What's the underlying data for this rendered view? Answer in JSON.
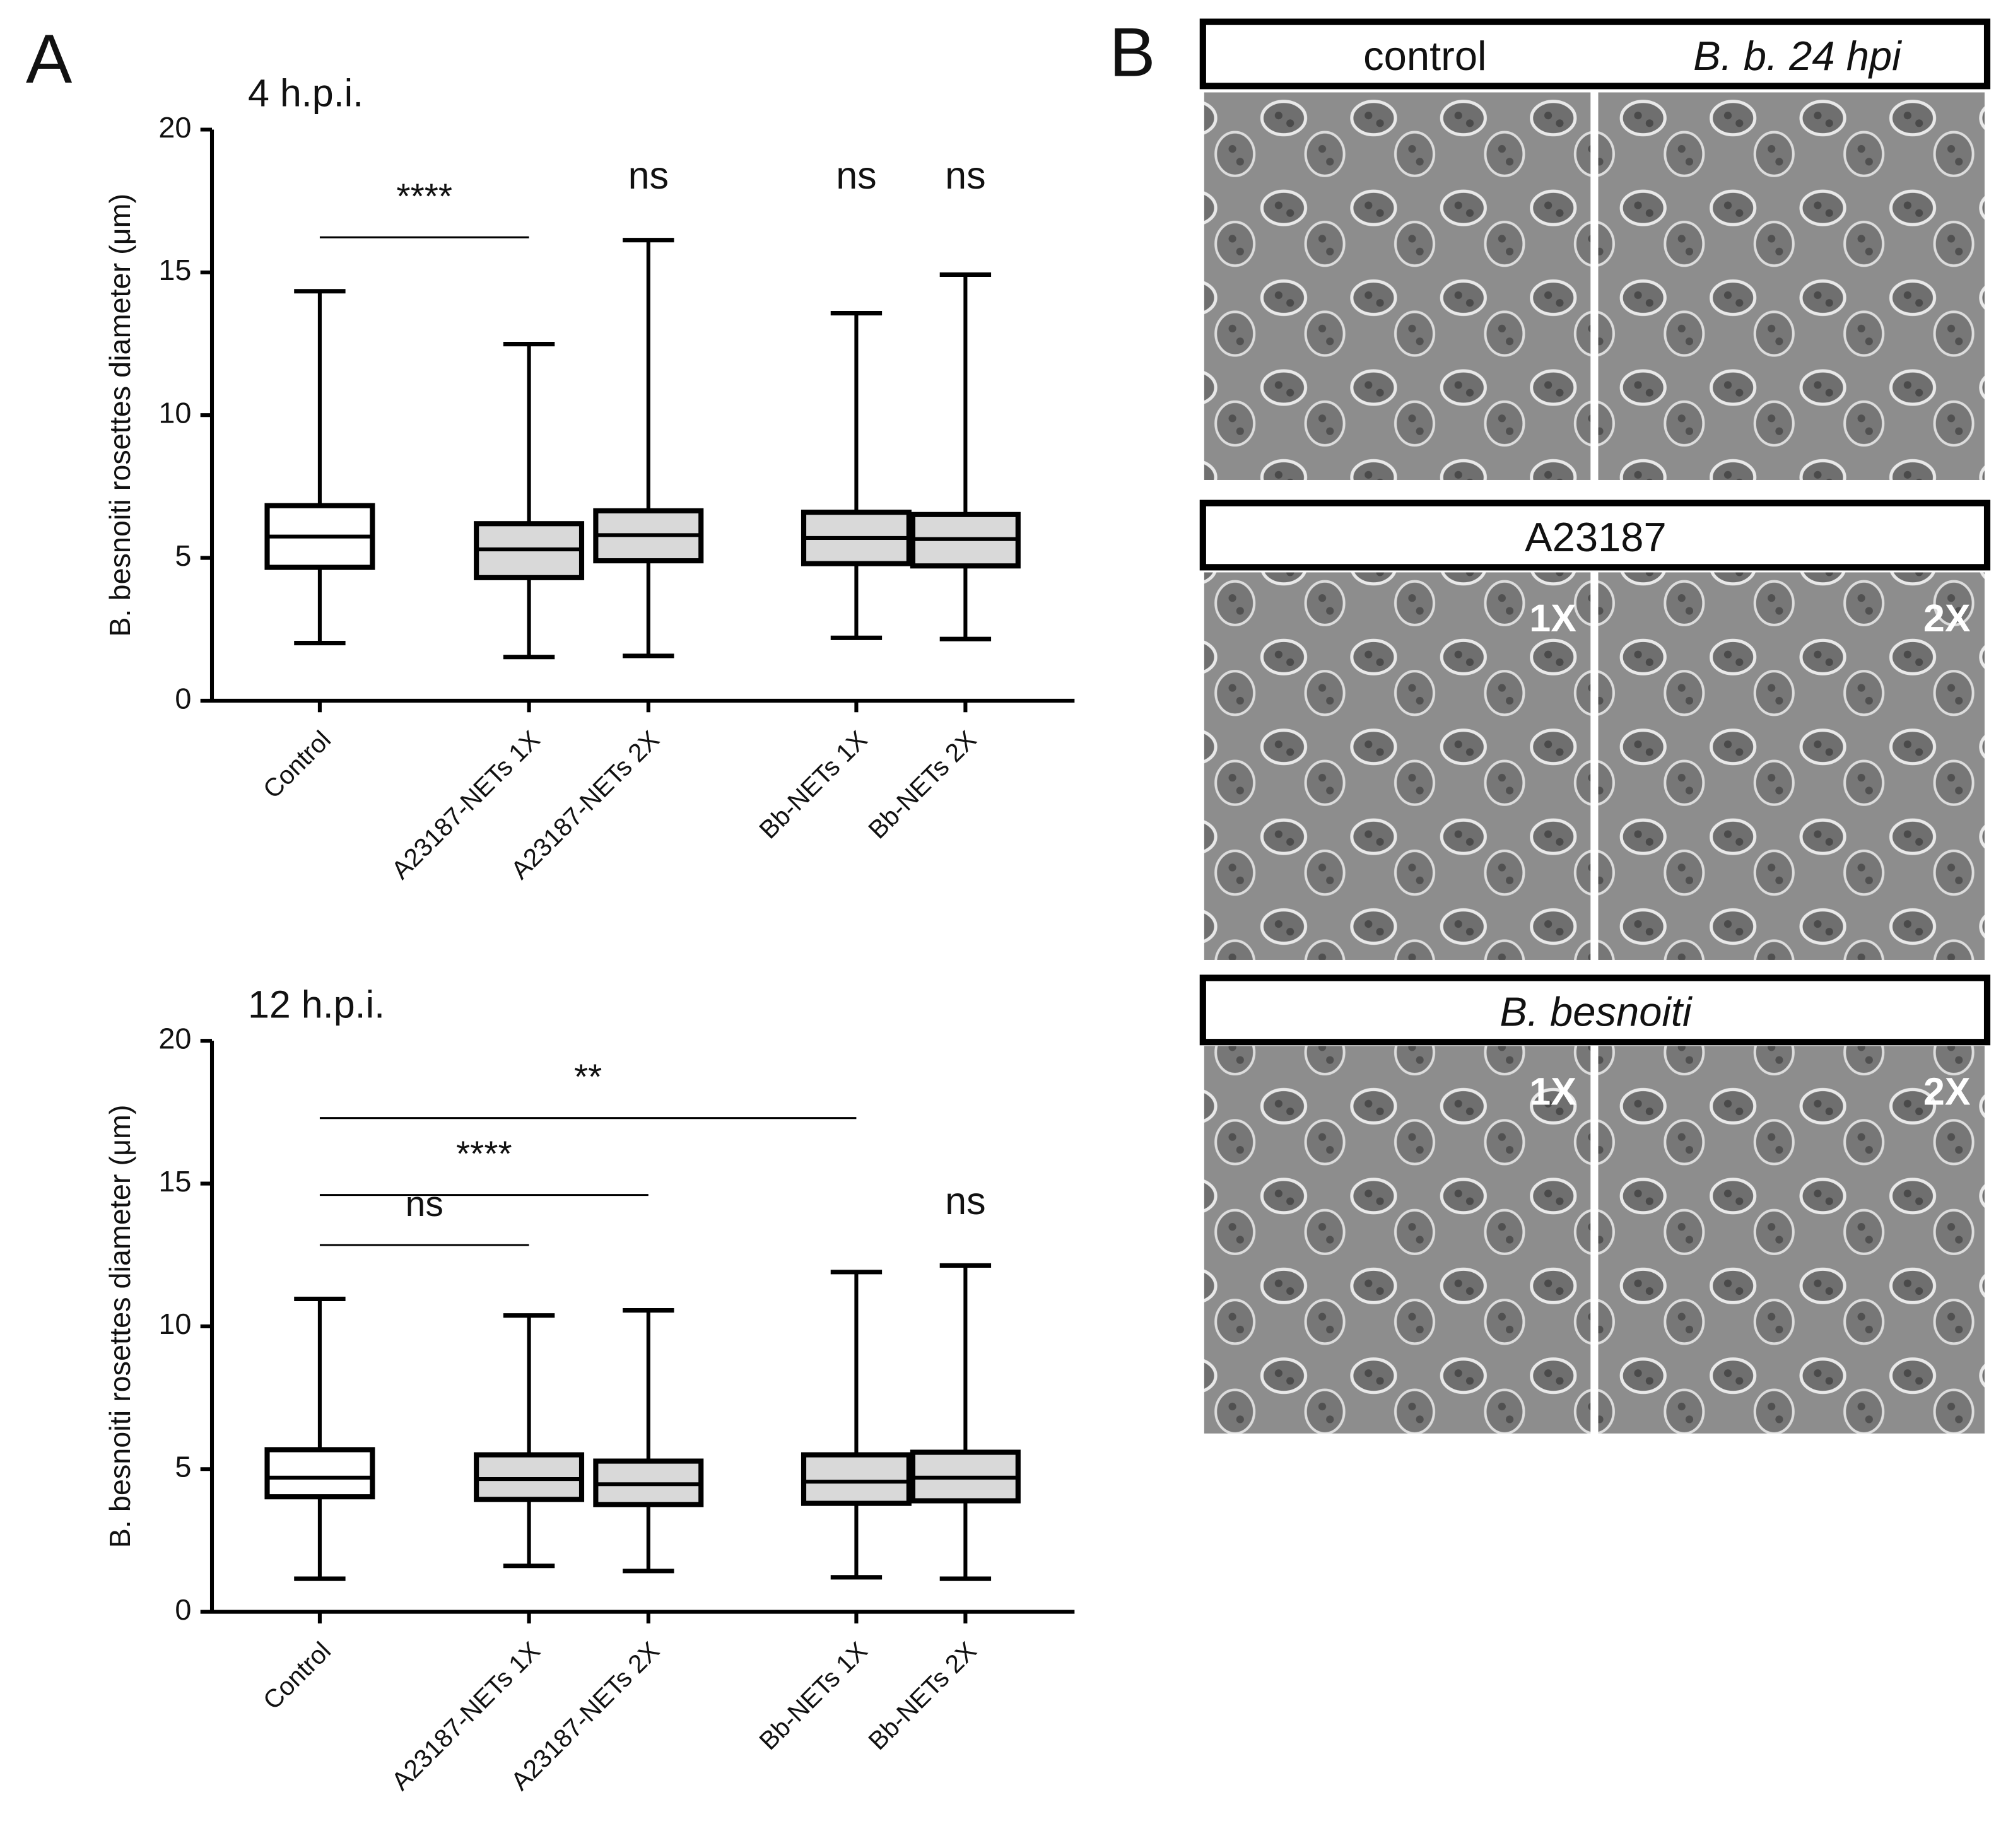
{
  "panel_labels": [
    "A",
    "B"
  ],
  "chart_data": [
    {
      "type": "box",
      "title": "4 h.p.i.",
      "y_label": "B. besnoiti rosettes diameter (μm)",
      "categories": [
        "Control",
        "A23187-NETs 1X",
        "A23187-NETs 2X",
        "Bb-NETs 1X",
        "Bb-NETs 2X"
      ],
      "whisker_low": [
        2.02,
        1.53,
        1.57,
        2.2,
        2.16
      ],
      "q1": [
        4.67,
        4.31,
        4.9,
        4.8,
        4.72
      ],
      "median": [
        5.75,
        5.3,
        5.8,
        5.7,
        5.66
      ],
      "q3": [
        6.83,
        6.2,
        6.65,
        6.6,
        6.52
      ],
      "whisker_high": [
        14.34,
        12.49,
        16.13,
        13.57,
        14.92
      ],
      "box_colors": [
        "#ffffff",
        "#d9d9d9",
        "#d9d9d9",
        "#d9d9d9",
        "#d9d9d9"
      ],
      "ylim": [
        0,
        20
      ],
      "yticks": [
        0,
        5,
        10,
        15,
        20
      ],
      "annotations": [
        {
          "text": "****",
          "span": [
            "Control",
            "A23187-NETs 1X"
          ]
        },
        {
          "text": "ns",
          "span": [
            "A23187-NETs 2X"
          ]
        },
        {
          "text": "ns",
          "span": [
            "Bb-NETs 1X"
          ]
        },
        {
          "text": "ns",
          "span": [
            "Bb-NETs 2X"
          ]
        }
      ]
    },
    {
      "type": "box",
      "title": "12 h.p.i.",
      "y_label": "B. besnoiti rosettes diameter (μm)",
      "categories": [
        "Control",
        "A23187-NETs 1X",
        "A23187-NETs 2X",
        "Bb-NETs 1X",
        "Bb-NETs 2X"
      ],
      "whisker_low": [
        1.16,
        1.61,
        1.43,
        1.21,
        1.16
      ],
      "q1": [
        4.03,
        3.94,
        3.76,
        3.8,
        3.89
      ],
      "median": [
        4.7,
        4.65,
        4.47,
        4.56,
        4.7
      ],
      "q3": [
        5.68,
        5.5,
        5.28,
        5.5,
        5.59
      ],
      "whisker_high": [
        10.96,
        10.38,
        10.56,
        11.9,
        12.13
      ],
      "box_colors": [
        "#ffffff",
        "#d9d9d9",
        "#d9d9d9",
        "#d9d9d9",
        "#d9d9d9"
      ],
      "ylim": [
        0,
        20
      ],
      "yticks": [
        0,
        5,
        10,
        15,
        20
      ],
      "annotations": [
        {
          "text": "ns",
          "span": [
            "Control",
            "A23187-NETs 1X"
          ]
        },
        {
          "text": "****",
          "span": [
            "Control",
            "A23187-NETs 2X"
          ]
        },
        {
          "text": "**",
          "span": [
            "Control",
            "Bb-NETs 1X"
          ]
        },
        {
          "text": "ns",
          "span": [
            "Bb-NETs 2X"
          ]
        }
      ]
    }
  ],
  "panel_b": {
    "rows": [
      {
        "headers": [
          "control",
          "B. b. 24 hpi"
        ],
        "image_labels": []
      },
      {
        "headers": [
          "A23187"
        ],
        "image_labels": [
          "1X",
          "2X"
        ]
      },
      {
        "headers": [
          "B. besnoiti"
        ],
        "image_labels": [
          "1X",
          "2X"
        ]
      }
    ]
  }
}
